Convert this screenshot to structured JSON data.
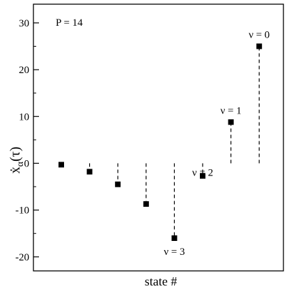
{
  "chart_data": {
    "type": "scatter",
    "title": "",
    "xlabel": "state #",
    "ylabel_symbol": "ẋ",
    "ylabel_subscript": "α",
    "ylabel_argument": "(τ)",
    "parameter_label": "P = 14",
    "ylim": [
      -23,
      34
    ],
    "yticks": [
      -20,
      -10,
      0,
      10,
      20,
      30
    ],
    "grid": false,
    "marker_color": "#000000",
    "series": [
      {
        "x": [
          1,
          2,
          3,
          4,
          5,
          6,
          7,
          8
        ],
        "values": [
          -0.3,
          -1.8,
          -4.5,
          -8.7,
          -16.0,
          -2.7,
          8.8,
          25.0
        ]
      }
    ],
    "annotations": [
      {
        "text": "ν = 3",
        "x": 5,
        "y": -16.0
      },
      {
        "text": "ν = 2",
        "x": 6,
        "y": -2.7
      },
      {
        "text": "ν = 1",
        "x": 7,
        "y": 8.8
      },
      {
        "text": "ν = 0",
        "x": 8,
        "y": 25.0
      }
    ]
  }
}
